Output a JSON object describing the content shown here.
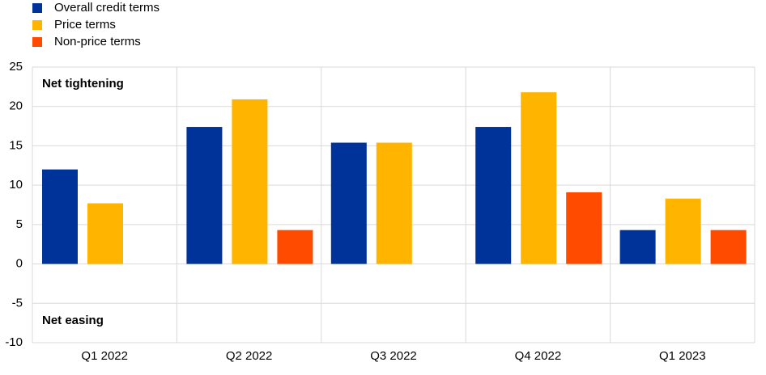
{
  "chart_data": {
    "type": "bar",
    "categories": [
      "Q1 2022",
      "Q2 2022",
      "Q3 2022",
      "Q4 2022",
      "Q1 2023"
    ],
    "series": [
      {
        "name": "Overall credit terms",
        "color": "#003399",
        "values": [
          12,
          17.4,
          15.4,
          17.4,
          4.3
        ]
      },
      {
        "name": "Price terms",
        "color": "#ffb400",
        "values": [
          7.7,
          20.9,
          15.4,
          21.8,
          8.3
        ]
      },
      {
        "name": "Non-price terms",
        "color": "#ff4b00",
        "values": [
          0,
          4.3,
          0,
          9.1,
          4.3
        ]
      }
    ],
    "annotations": [
      "Net tightening",
      "Net easing"
    ],
    "ylim": [
      -10,
      25
    ],
    "yticks": [
      -10,
      -5,
      0,
      5,
      10,
      15,
      20,
      25
    ],
    "grid": true,
    "legend": "top-left"
  }
}
